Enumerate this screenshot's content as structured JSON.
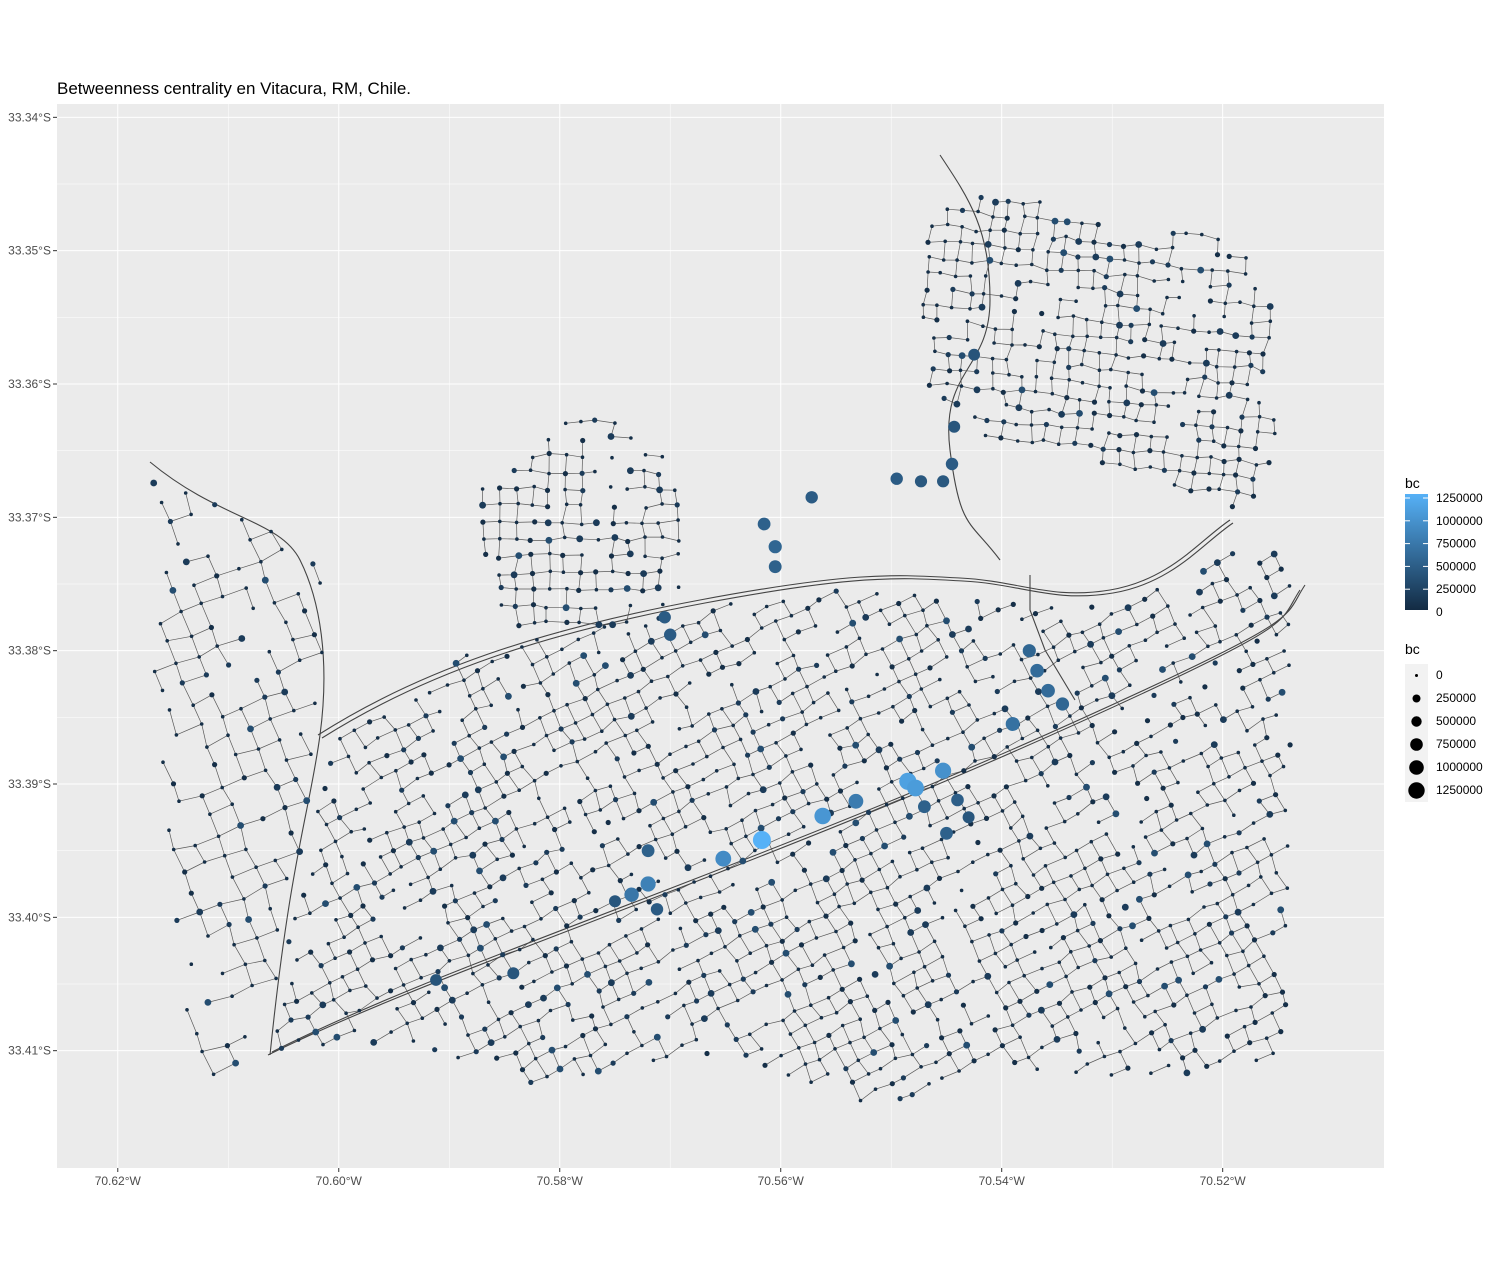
{
  "title": "Betweenness centrality en Vitacura, RM, Chile.",
  "panel_background": "#EBEBEB",
  "grid_color": "#FFFFFF",
  "edge_color": "#5a5a5a",
  "chart_data": {
    "type": "scatter",
    "subtype": "street-network node map",
    "x_axis": {
      "ticks": [
        "70.62°W",
        "70.60°W",
        "70.58°W",
        "70.56°W",
        "70.54°W",
        "70.52°W"
      ],
      "range": [
        -70.6255,
        -70.5054
      ]
    },
    "y_axis": {
      "ticks": [
        "33.34°S",
        "33.35°S",
        "33.36°S",
        "33.37°S",
        "33.38°S",
        "33.39°S",
        "33.40°S",
        "33.41°S"
      ],
      "range": [
        -33.4188,
        -33.339
      ]
    },
    "legend_color": {
      "title": "bc",
      "labels": [
        "1250000",
        "1000000",
        "750000",
        "500000",
        "250000",
        "0"
      ],
      "low": "#132B43",
      "high": "#56B1F7"
    },
    "legend_size": {
      "title": "bc",
      "labels": [
        "0",
        "250000",
        "500000",
        "750000",
        "1000000",
        "1250000"
      ]
    },
    "highlight_nodes": [
      {
        "lon": -70.5617,
        "lat": -33.3942,
        "bc": 1250000
      },
      {
        "lon": -70.5485,
        "lat": -33.3898,
        "bc": 1100000
      },
      {
        "lon": -70.5478,
        "lat": -33.3903,
        "bc": 1050000
      },
      {
        "lon": -70.5562,
        "lat": -33.3924,
        "bc": 1000000
      },
      {
        "lon": -70.5453,
        "lat": -33.389,
        "bc": 950000
      },
      {
        "lon": -70.5652,
        "lat": -33.3956,
        "bc": 900000
      },
      {
        "lon": -70.572,
        "lat": -33.3975,
        "bc": 800000
      },
      {
        "lon": -70.5735,
        "lat": -33.3983,
        "bc": 700000
      },
      {
        "lon": -70.5532,
        "lat": -33.3913,
        "bc": 750000
      },
      {
        "lon": -70.539,
        "lat": -33.3855,
        "bc": 650000
      },
      {
        "lon": -70.5368,
        "lat": -33.3815,
        "bc": 600000
      },
      {
        "lon": -70.5375,
        "lat": -33.38,
        "bc": 550000
      },
      {
        "lon": -70.5358,
        "lat": -33.383,
        "bc": 600000
      },
      {
        "lon": -70.5345,
        "lat": -33.384,
        "bc": 550000
      },
      {
        "lon": -70.5615,
        "lat": -33.3705,
        "bc": 500000
      },
      {
        "lon": -70.5605,
        "lat": -33.3722,
        "bc": 550000
      },
      {
        "lon": -70.5605,
        "lat": -33.3737,
        "bc": 500000
      },
      {
        "lon": -70.5572,
        "lat": -33.3685,
        "bc": 450000
      },
      {
        "lon": -70.5495,
        "lat": -33.3671,
        "bc": 450000
      },
      {
        "lon": -70.5473,
        "lat": -33.3673,
        "bc": 420000
      },
      {
        "lon": -70.5453,
        "lat": -33.3673,
        "bc": 420000
      },
      {
        "lon": -70.5445,
        "lat": -33.366,
        "bc": 450000
      },
      {
        "lon": -70.5443,
        "lat": -33.3632,
        "bc": 400000
      },
      {
        "lon": -70.5425,
        "lat": -33.3578,
        "bc": 380000
      },
      {
        "lon": -70.547,
        "lat": -33.3917,
        "bc": 500000
      },
      {
        "lon": -70.5705,
        "lat": -33.3775,
        "bc": 450000
      },
      {
        "lon": -70.57,
        "lat": -33.3788,
        "bc": 450000
      },
      {
        "lon": -70.545,
        "lat": -33.3937,
        "bc": 500000
      },
      {
        "lon": -70.544,
        "lat": -33.3912,
        "bc": 480000
      },
      {
        "lon": -70.572,
        "lat": -33.395,
        "bc": 500000
      },
      {
        "lon": -70.5712,
        "lat": -33.3994,
        "bc": 450000
      },
      {
        "lon": -70.575,
        "lat": -33.3988,
        "bc": 400000
      },
      {
        "lon": -70.5842,
        "lat": -33.4042,
        "bc": 400000
      },
      {
        "lon": -70.5912,
        "lat": -33.4047,
        "bc": 380000
      },
      {
        "lon": -70.543,
        "lat": -33.3925,
        "bc": 400000
      }
    ]
  }
}
